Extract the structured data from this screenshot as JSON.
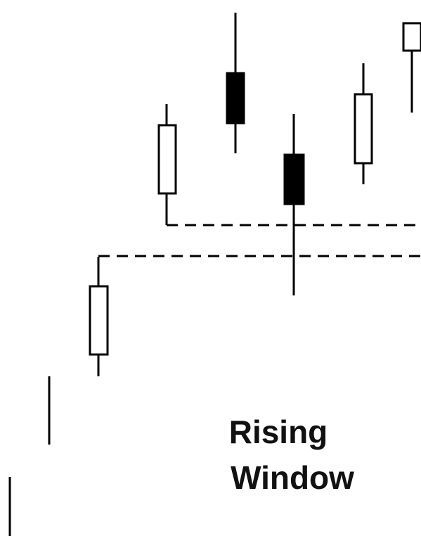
{
  "label": {
    "lines": [
      "Rising",
      "Window"
    ]
  }
}
